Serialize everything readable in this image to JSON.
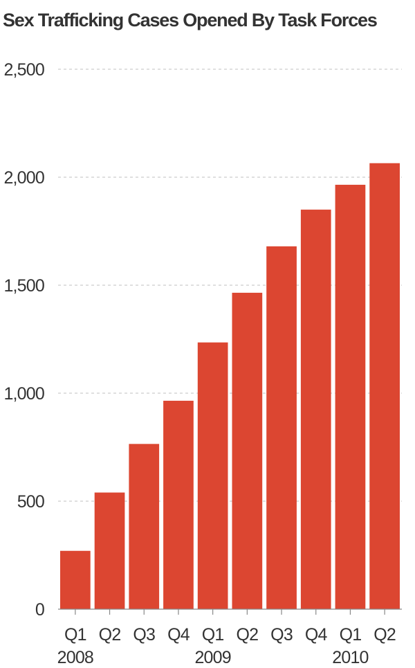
{
  "chart_data": {
    "type": "bar",
    "title": "Sex Trafficking Cases Opened By Task Forces",
    "xlabel": "",
    "ylabel": "",
    "categories": [
      "Q1",
      "Q2",
      "Q3",
      "Q4",
      "Q1",
      "Q2",
      "Q3",
      "Q4",
      "Q1",
      "Q2"
    ],
    "years": [
      {
        "label": "2008",
        "under_index": 0
      },
      {
        "label": "2009",
        "under_index": 4
      },
      {
        "label": "2010",
        "under_index": 8
      }
    ],
    "values": [
      270,
      540,
      765,
      965,
      1235,
      1465,
      1680,
      1850,
      1965,
      2065
    ],
    "ylim": [
      0,
      2500
    ],
    "yticks": [
      0,
      500,
      1000,
      1500,
      2000,
      2500
    ],
    "ytick_labels": [
      "0",
      "500",
      "1,000",
      "1,500",
      "2,000",
      "2,500"
    ],
    "grid": true,
    "legend": "none",
    "bar_color": "#dc4631"
  }
}
